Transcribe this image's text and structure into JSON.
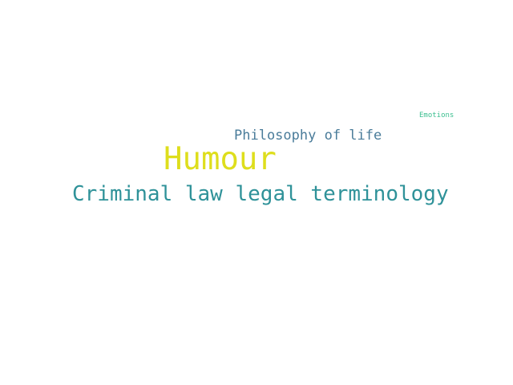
{
  "words": [
    {
      "text": "Emotions",
      "color": "#3bbf8f"
    },
    {
      "text": "Philosophy of life",
      "color": "#4a7c9a"
    },
    {
      "text": "Humour",
      "color": "#dede1c"
    },
    {
      "text": "Criminal law legal terminology",
      "color": "#2f9299"
    }
  ]
}
